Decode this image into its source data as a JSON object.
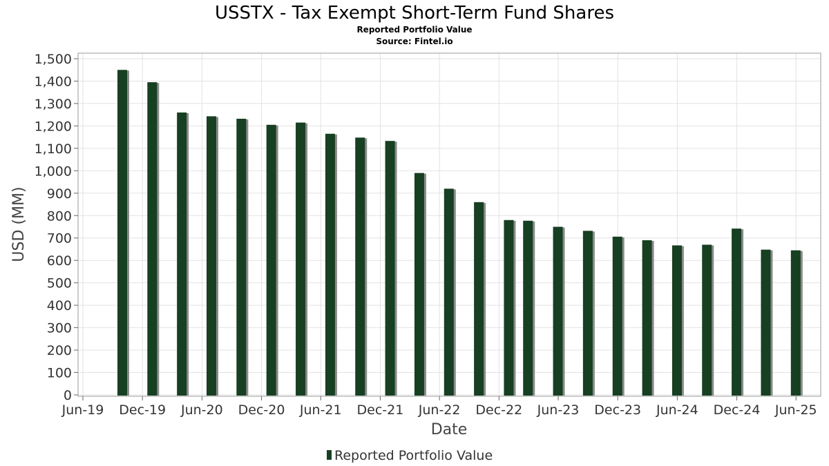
{
  "chart_data": {
    "type": "bar",
    "title": "USSTX - Tax Exempt Short-Term Fund Shares",
    "subtitle": "Reported Portfolio Value",
    "source": "Source: Fintel.io",
    "xlabel": "Date",
    "ylabel": "USD (MM)",
    "ylim": [
      0,
      1500
    ],
    "yticks": [
      0,
      100,
      200,
      300,
      400,
      500,
      600,
      700,
      800,
      900,
      1000,
      1100,
      1200,
      1300,
      1400,
      1500
    ],
    "ytick_labels": [
      "0",
      "100",
      "200",
      "300",
      "400",
      "500",
      "600",
      "700",
      "800",
      "900",
      "1,000",
      "1,100",
      "1,200",
      "1,300",
      "1,400",
      "1,500"
    ],
    "xlim": [
      "2019-06-01",
      "2025-08-01"
    ],
    "xticks": [
      {
        "date": "2019-06-01",
        "label": "Jun-19"
      },
      {
        "date": "2019-12-01",
        "label": "Dec-19"
      },
      {
        "date": "2020-06-01",
        "label": "Jun-20"
      },
      {
        "date": "2020-12-01",
        "label": "Dec-20"
      },
      {
        "date": "2021-06-01",
        "label": "Jun-21"
      },
      {
        "date": "2021-12-01",
        "label": "Dec-21"
      },
      {
        "date": "2022-06-01",
        "label": "Jun-22"
      },
      {
        "date": "2022-12-01",
        "label": "Dec-22"
      },
      {
        "date": "2023-06-01",
        "label": "Jun-23"
      },
      {
        "date": "2023-12-01",
        "label": "Dec-23"
      },
      {
        "date": "2024-06-01",
        "label": "Jun-24"
      },
      {
        "date": "2024-12-01",
        "label": "Dec-24"
      },
      {
        "date": "2025-06-01",
        "label": "Jun-25"
      }
    ],
    "grid": true,
    "legend_position": "bottom-center",
    "colors": {
      "bar": "#173f22",
      "shadow": "#8a8a8a"
    },
    "series": [
      {
        "name": "Reported Portfolio Value",
        "points": [
          {
            "x": "2019-09-30",
            "y": 1450
          },
          {
            "x": "2019-12-31",
            "y": 1395
          },
          {
            "x": "2020-03-31",
            "y": 1260
          },
          {
            "x": "2020-06-30",
            "y": 1243
          },
          {
            "x": "2020-09-30",
            "y": 1232
          },
          {
            "x": "2020-12-31",
            "y": 1205
          },
          {
            "x": "2021-03-31",
            "y": 1215
          },
          {
            "x": "2021-06-30",
            "y": 1165
          },
          {
            "x": "2021-09-30",
            "y": 1148
          },
          {
            "x": "2021-12-31",
            "y": 1133
          },
          {
            "x": "2022-03-31",
            "y": 990
          },
          {
            "x": "2022-06-30",
            "y": 920
          },
          {
            "x": "2022-09-30",
            "y": 860
          },
          {
            "x": "2022-12-31",
            "y": 780
          },
          {
            "x": "2023-02-28",
            "y": 777
          },
          {
            "x": "2023-05-31",
            "y": 750
          },
          {
            "x": "2023-08-31",
            "y": 732
          },
          {
            "x": "2023-11-30",
            "y": 706
          },
          {
            "x": "2024-02-29",
            "y": 690
          },
          {
            "x": "2024-05-31",
            "y": 667
          },
          {
            "x": "2024-08-31",
            "y": 670
          },
          {
            "x": "2024-11-30",
            "y": 742
          },
          {
            "x": "2025-02-28",
            "y": 648
          },
          {
            "x": "2025-05-31",
            "y": 645
          }
        ]
      }
    ]
  }
}
